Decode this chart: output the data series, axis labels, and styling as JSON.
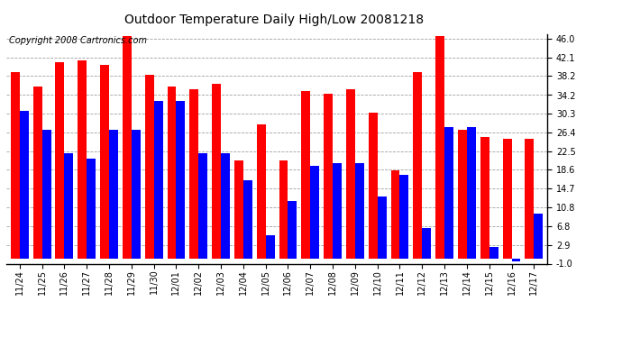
{
  "title": "Outdoor Temperature Daily High/Low 20081218",
  "copyright": "Copyright 2008 Cartronics.com",
  "dates": [
    "11/24",
    "11/25",
    "11/26",
    "11/27",
    "11/28",
    "11/29",
    "11/30",
    "12/01",
    "12/02",
    "12/03",
    "12/04",
    "12/05",
    "12/06",
    "12/07",
    "12/08",
    "12/09",
    "12/10",
    "12/11",
    "12/12",
    "12/13",
    "12/14",
    "12/15",
    "12/16",
    "12/17"
  ],
  "highs": [
    39.0,
    36.0,
    41.0,
    41.5,
    40.5,
    46.5,
    38.5,
    36.0,
    35.5,
    36.5,
    20.5,
    28.0,
    20.5,
    35.0,
    34.5,
    35.5,
    30.5,
    18.5,
    39.0,
    46.5,
    27.0,
    25.5,
    25.0,
    25.0
  ],
  "lows": [
    31.0,
    27.0,
    22.0,
    21.0,
    27.0,
    27.0,
    33.0,
    33.0,
    22.0,
    22.0,
    16.5,
    5.0,
    12.0,
    19.5,
    20.0,
    20.0,
    13.0,
    17.5,
    6.5,
    27.5,
    27.5,
    2.5,
    -0.5,
    9.5
  ],
  "high_color": "#FF0000",
  "low_color": "#0000FF",
  "background_color": "#FFFFFF",
  "grid_color": "#888888",
  "ylim_min": -1.0,
  "ylim_max": 47.0,
  "yticks": [
    46.0,
    42.1,
    38.2,
    34.2,
    30.3,
    26.4,
    22.5,
    18.6,
    14.7,
    10.8,
    6.8,
    2.9,
    -1.0
  ],
  "bar_width": 0.4,
  "title_fontsize": 10,
  "copyright_fontsize": 7,
  "tick_fontsize": 7,
  "figsize": [
    6.9,
    3.75
  ],
  "dpi": 100
}
